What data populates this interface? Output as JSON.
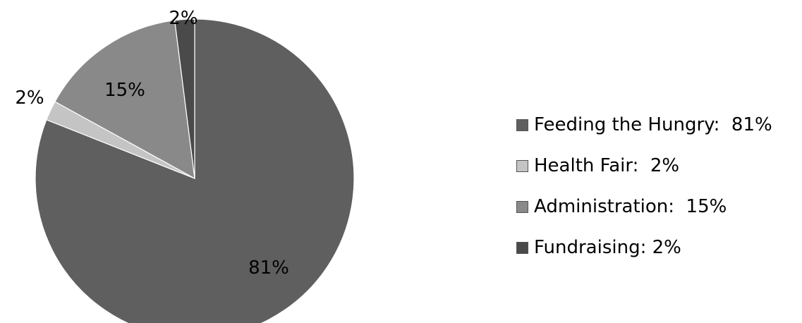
{
  "chart_data": {
    "type": "pie",
    "categories": [
      "Feeding the Hungry",
      "Health Fair",
      "Administration",
      "Fundraising"
    ],
    "values": [
      81,
      2,
      15,
      2
    ],
    "slice_labels": [
      "81%",
      "2%",
      "15%",
      "2%"
    ],
    "legend": [
      "Feeding the Hungry:  81%",
      "Health Fair:  2%",
      "Administration:  15%",
      "Fundraising: 2%"
    ],
    "colors": [
      "#5f5f5f",
      "#c4c4c4",
      "#898989",
      "#4a4a4a"
    ],
    "legend_position": "right"
  }
}
